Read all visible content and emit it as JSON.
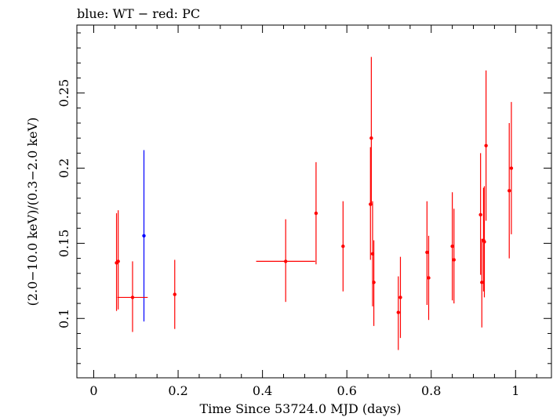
{
  "chart_data": {
    "type": "scatter",
    "title": "blue: WT − red: PC",
    "xlabel": "Time Since 53724.0 MJD (days)",
    "ylabel": "(2.0−10.0 keV)/(0.3−2.0 keV)",
    "xlim": [
      -0.04,
      1.085
    ],
    "ylim": [
      0.0605,
      0.2952
    ],
    "x_ticks": [
      0,
      0.2,
      0.4,
      0.6,
      0.8,
      1
    ],
    "x_tick_labels": [
      "0",
      "0.2",
      "0.4",
      "0.6",
      "0.8",
      "1"
    ],
    "y_ticks": [
      0.1,
      0.15,
      0.2,
      0.25
    ],
    "y_tick_labels": [
      "0.1",
      "0.15",
      "0.2",
      "0.25"
    ],
    "grid": false,
    "series": [
      {
        "name": "WT",
        "color": "#0000ff",
        "points": [
          {
            "x": 0.119,
            "y": 0.155,
            "xerr": 0.0,
            "ylo": 0.098,
            "yhi": 0.212
          }
        ]
      },
      {
        "name": "PC",
        "color": "#ff0000",
        "points": [
          {
            "x": 0.054,
            "y": 0.137,
            "xerr": 0.0,
            "ylo": 0.105,
            "yhi": 0.17
          },
          {
            "x": 0.058,
            "y": 0.138,
            "xerr": 0.0,
            "ylo": 0.106,
            "yhi": 0.172
          },
          {
            "x": 0.092,
            "y": 0.114,
            "xerr": 0.036,
            "ylo": 0.091,
            "yhi": 0.138
          },
          {
            "x": 0.192,
            "y": 0.116,
            "xerr": 0.0,
            "ylo": 0.093,
            "yhi": 0.139
          },
          {
            "x": 0.455,
            "y": 0.138,
            "xerr": 0.07,
            "ylo": 0.111,
            "yhi": 0.166
          },
          {
            "x": 0.527,
            "y": 0.17,
            "xerr": 0.0,
            "ylo": 0.136,
            "yhi": 0.204
          },
          {
            "x": 0.591,
            "y": 0.148,
            "xerr": 0.0,
            "ylo": 0.118,
            "yhi": 0.178
          },
          {
            "x": 0.656,
            "y": 0.176,
            "xerr": 0.0,
            "ylo": 0.139,
            "yhi": 0.214
          },
          {
            "x": 0.658,
            "y": 0.22,
            "xerr": 0.0,
            "ylo": 0.175,
            "yhi": 0.274
          },
          {
            "x": 0.661,
            "y": 0.143,
            "xerr": 0.0,
            "ylo": 0.108,
            "yhi": 0.178
          },
          {
            "x": 0.664,
            "y": 0.124,
            "xerr": 0.0,
            "ylo": 0.095,
            "yhi": 0.152
          },
          {
            "x": 0.722,
            "y": 0.104,
            "xerr": 0.0,
            "ylo": 0.079,
            "yhi": 0.128
          },
          {
            "x": 0.727,
            "y": 0.114,
            "xerr": 0.0,
            "ylo": 0.087,
            "yhi": 0.141
          },
          {
            "x": 0.79,
            "y": 0.144,
            "xerr": 0.0,
            "ylo": 0.109,
            "yhi": 0.178
          },
          {
            "x": 0.794,
            "y": 0.127,
            "xerr": 0.0,
            "ylo": 0.099,
            "yhi": 0.155
          },
          {
            "x": 0.85,
            "y": 0.148,
            "xerr": 0.0,
            "ylo": 0.112,
            "yhi": 0.184
          },
          {
            "x": 0.854,
            "y": 0.139,
            "xerr": 0.0,
            "ylo": 0.11,
            "yhi": 0.173
          },
          {
            "x": 0.917,
            "y": 0.169,
            "xerr": 0.0,
            "ylo": 0.129,
            "yhi": 0.21
          },
          {
            "x": 0.92,
            "y": 0.124,
            "xerr": 0.0,
            "ylo": 0.094,
            "yhi": 0.153
          },
          {
            "x": 0.924,
            "y": 0.152,
            "xerr": 0.0,
            "ylo": 0.118,
            "yhi": 0.187
          },
          {
            "x": 0.926,
            "y": 0.151,
            "xerr": 0.0,
            "ylo": 0.114,
            "yhi": 0.188
          },
          {
            "x": 0.93,
            "y": 0.215,
            "xerr": 0.0,
            "ylo": 0.165,
            "yhi": 0.265
          },
          {
            "x": 0.985,
            "y": 0.185,
            "xerr": 0.0,
            "ylo": 0.14,
            "yhi": 0.23
          },
          {
            "x": 0.99,
            "y": 0.2,
            "xerr": 0.0,
            "ylo": 0.156,
            "yhi": 0.244
          }
        ]
      }
    ]
  }
}
